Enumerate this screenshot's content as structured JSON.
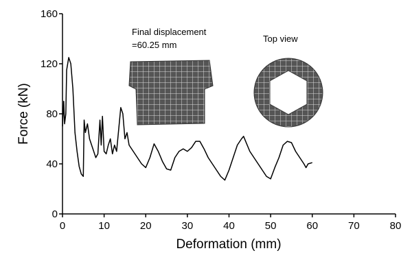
{
  "chart_data": {
    "type": "line",
    "x_label": "Deformation (mm)",
    "y_label": "Force (kN)",
    "annotations": [
      "Final displacement",
      "=60.25 mm",
      "Top view"
    ],
    "x": [
      0,
      0.3,
      0.5,
      0.8,
      1,
      1.5,
      2,
      2.5,
      3,
      3.5,
      4,
      4.5,
      5,
      5.2,
      5.5,
      6,
      6.5,
      7,
      7.5,
      8,
      8.5,
      9,
      9.3,
      9.6,
      10,
      10.5,
      11,
      11.5,
      12,
      12.5,
      13,
      14,
      14.5,
      15,
      15.5,
      16,
      17,
      18,
      19,
      20,
      21,
      22,
      23,
      24,
      25,
      26,
      27,
      28,
      29,
      30,
      31,
      32,
      33,
      34,
      35,
      36,
      37,
      38,
      39,
      40,
      41,
      42,
      43,
      43.5,
      44,
      45,
      46,
      47,
      48,
      49,
      50,
      51,
      52,
      53,
      54,
      55,
      56,
      57,
      58,
      58.5,
      59,
      60
    ],
    "series": [
      {
        "color": "#000000",
        "values": [
          70,
          90,
          72,
          80,
          115,
          125,
          120,
          100,
          65,
          50,
          38,
          32,
          30,
          75,
          65,
          72,
          60,
          55,
          50,
          45,
          48,
          75,
          55,
          78,
          50,
          48,
          55,
          60,
          48,
          55,
          50,
          85,
          80,
          60,
          65,
          55,
          50,
          45,
          40,
          37,
          45,
          56,
          50,
          42,
          36,
          35,
          45,
          50,
          52,
          50,
          53,
          58,
          58,
          52,
          45,
          40,
          35,
          30,
          27,
          35,
          45,
          55,
          60,
          62,
          58,
          50,
          45,
          40,
          35,
          30,
          28,
          37,
          45,
          55,
          58,
          57,
          50,
          45,
          40,
          37,
          40,
          41
        ]
      }
    ],
    "xlim": [
      0,
      80
    ],
    "xticks": [
      0,
      10,
      20,
      30,
      40,
      50,
      60,
      70,
      80
    ],
    "ylim": [
      0,
      160
    ],
    "yticks": [
      0,
      40,
      80,
      120,
      160
    ]
  }
}
